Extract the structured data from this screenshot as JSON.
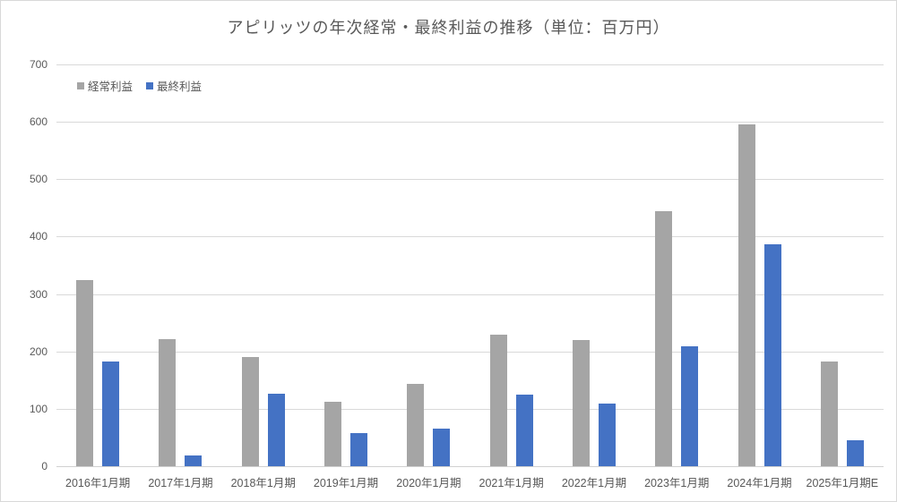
{
  "chart_data": {
    "type": "bar",
    "title": "アピリッツの年次経常・最終利益の推移（単位：百万円）",
    "categories": [
      "2016年1月期",
      "2017年1月期",
      "2018年1月期",
      "2019年1月期",
      "2020年1月期",
      "2021年1月期",
      "2022年1月期",
      "2023年1月期",
      "2024年1月期",
      "2025年1月期E"
    ],
    "series": [
      {
        "name": "経常利益",
        "color": "#A5A5A5",
        "values": [
          325,
          221,
          190,
          113,
          143,
          229,
          220,
          445,
          595,
          183
        ]
      },
      {
        "name": "最終利益",
        "color": "#4472C4",
        "values": [
          182,
          18,
          126,
          57,
          65,
          124,
          109,
          209,
          387,
          45
        ]
      }
    ],
    "xlabel": "",
    "ylabel": "",
    "ylim": [
      0,
      700
    ],
    "ytick_interval": 100,
    "grid": true,
    "legend_position": "top-left-inside"
  },
  "colors": {
    "title_text": "#595959",
    "axis_text": "#595959",
    "gridline": "#D9D9D9",
    "frame_border": "#D9D9D9",
    "background": "#FFFFFF"
  }
}
